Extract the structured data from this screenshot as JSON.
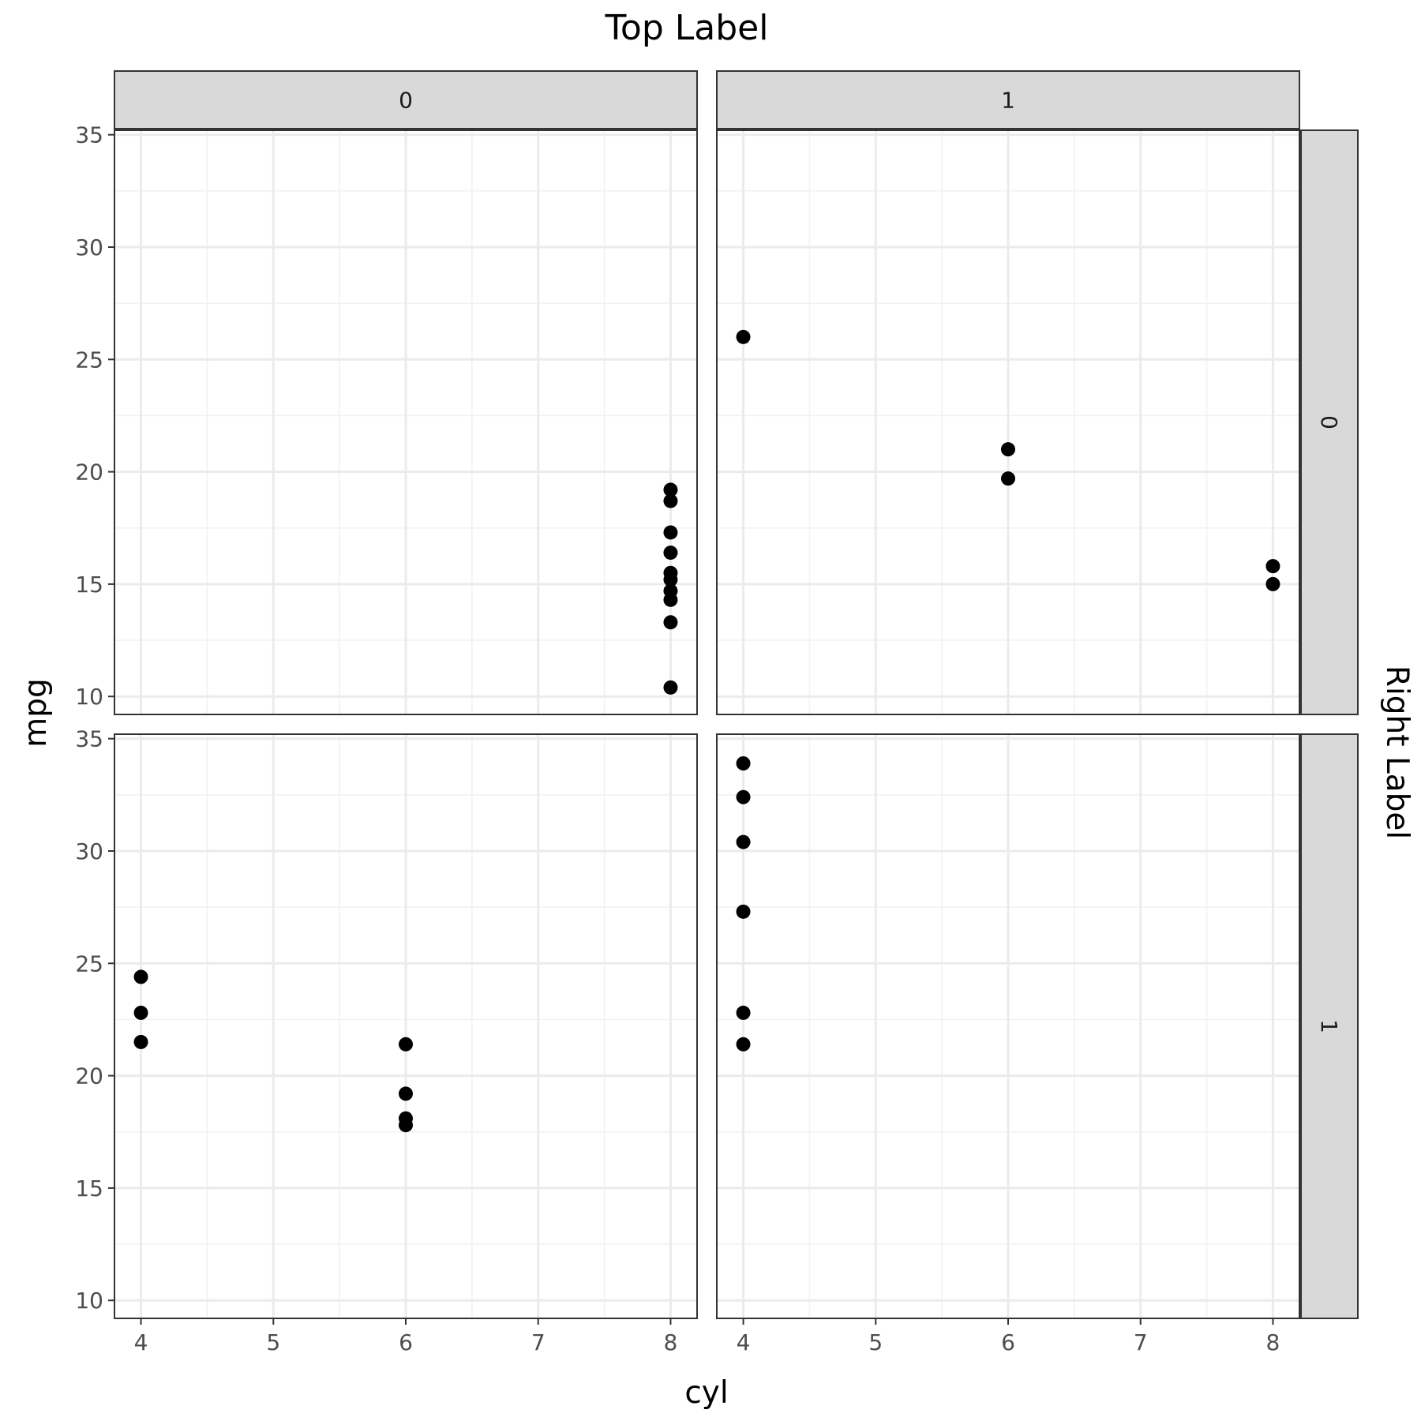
{
  "title": "Top Label",
  "chart_data": {
    "type": "scatter",
    "title": "Top Label",
    "xlabel": "cyl",
    "ylabel": "mpg",
    "right_label": "Right Label",
    "xlim": [
      3.8,
      8.2
    ],
    "ylim": [
      9.2,
      35.2
    ],
    "x_ticks": [
      4,
      5,
      6,
      7,
      8
    ],
    "y_ticks": [
      10,
      15,
      20,
      25,
      30,
      35
    ],
    "grid": true,
    "facet_cols": [
      "0",
      "1"
    ],
    "facet_rows": [
      "0",
      "1"
    ],
    "panels": [
      {
        "col": "0",
        "row": "0",
        "points": [
          {
            "x": 8,
            "y": 19.2
          },
          {
            "x": 8,
            "y": 18.7
          },
          {
            "x": 8,
            "y": 17.3
          },
          {
            "x": 8,
            "y": 16.4
          },
          {
            "x": 8,
            "y": 15.5
          },
          {
            "x": 8,
            "y": 15.2
          },
          {
            "x": 8,
            "y": 14.7
          },
          {
            "x": 8,
            "y": 14.3
          },
          {
            "x": 8,
            "y": 13.3
          },
          {
            "x": 8,
            "y": 10.4
          }
        ]
      },
      {
        "col": "1",
        "row": "0",
        "points": [
          {
            "x": 4,
            "y": 26.0
          },
          {
            "x": 6,
            "y": 21.0
          },
          {
            "x": 6,
            "y": 19.7
          },
          {
            "x": 8,
            "y": 15.8
          },
          {
            "x": 8,
            "y": 15.0
          }
        ]
      },
      {
        "col": "0",
        "row": "1",
        "points": [
          {
            "x": 4,
            "y": 24.4
          },
          {
            "x": 4,
            "y": 22.8
          },
          {
            "x": 4,
            "y": 21.5
          },
          {
            "x": 6,
            "y": 21.4
          },
          {
            "x": 6,
            "y": 19.2
          },
          {
            "x": 6,
            "y": 18.1
          },
          {
            "x": 6,
            "y": 17.8
          }
        ]
      },
      {
        "col": "1",
        "row": "1",
        "points": [
          {
            "x": 4,
            "y": 33.9
          },
          {
            "x": 4,
            "y": 32.4
          },
          {
            "x": 4,
            "y": 30.4
          },
          {
            "x": 4,
            "y": 27.3
          },
          {
            "x": 4,
            "y": 22.8
          },
          {
            "x": 4,
            "y": 21.4
          }
        ]
      }
    ],
    "colors": {
      "points": "#000000",
      "strip_fill": "#d9d9d9",
      "panel_border": "#333333",
      "grid_major": "#ebebeb",
      "grid_minor": "#f2f2f2",
      "tick_text": "#4d4d4d"
    }
  }
}
